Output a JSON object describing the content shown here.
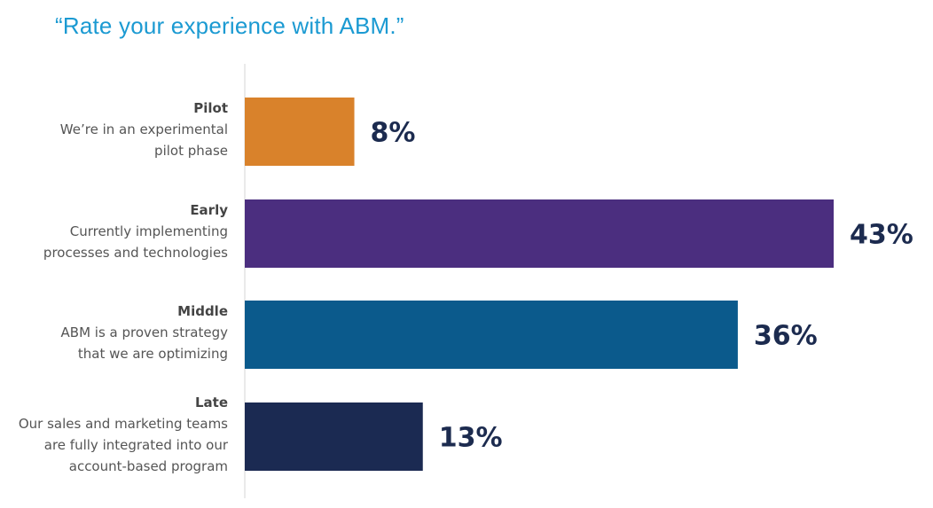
{
  "chart_data": {
    "type": "bar",
    "orientation": "horizontal",
    "title": "“Rate your experience with ABM.”",
    "categories": [
      {
        "name": "Pilot",
        "description": [
          "We’re in an experimental",
          "pilot phase"
        ]
      },
      {
        "name": "Early",
        "description": [
          "Currently implementing",
          "processes and technologies"
        ]
      },
      {
        "name": "Middle",
        "description": [
          "ABM is a proven strategy",
          "that we are optimizing"
        ]
      },
      {
        "name": "Late",
        "description": [
          "Our sales and marketing teams",
          "are fully integrated into our",
          "account-based program"
        ]
      }
    ],
    "values": [
      8,
      43,
      36,
      13
    ],
    "value_labels": [
      "8%",
      "43%",
      "36%",
      "13%"
    ],
    "unit": "%",
    "colors": [
      "#d9822b",
      "#4b2e7f",
      "#0b5a8c",
      "#1b2a52"
    ],
    "label_color": "#1c2b4f",
    "grid": false,
    "legend": "none"
  }
}
